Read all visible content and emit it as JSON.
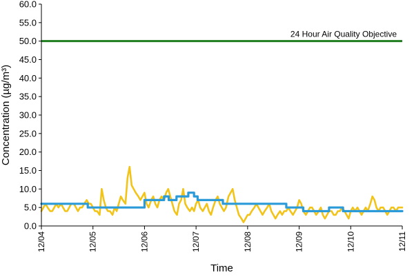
{
  "chart_data": {
    "type": "line",
    "title": "",
    "xlabel": "Time",
    "ylabel": "Concentration (µg/m³)",
    "ylim": [
      0,
      60
    ],
    "y_ticks": [
      "0.0",
      "5.0",
      "10.0",
      "15.0",
      "20.0",
      "25.0",
      "30.0",
      "35.0",
      "40.0",
      "45.0",
      "50.0",
      "55.0",
      "60.0"
    ],
    "x_categories": [
      "12/04",
      "12/05",
      "12/06",
      "12/07",
      "12/08",
      "12/09",
      "12/10",
      "12/11"
    ],
    "xlim": [
      0,
      7
    ],
    "grid": false,
    "legend": "none",
    "objective": {
      "label": "24 Hour Air Quality Objective",
      "value": 50,
      "color": "#1e7d1e"
    },
    "series": [
      {
        "color": "#f2c318",
        "x": [
          0,
          0.04,
          0.08,
          0.12,
          0.17,
          0.21,
          0.25,
          0.29,
          0.33,
          0.38,
          0.42,
          0.46,
          0.5,
          0.54,
          0.58,
          0.63,
          0.67,
          0.71,
          0.75,
          0.79,
          0.83,
          0.88,
          0.92,
          0.96,
          1,
          1.04,
          1.08,
          1.13,
          1.17,
          1.21,
          1.25,
          1.29,
          1.33,
          1.38,
          1.42,
          1.46,
          1.5,
          1.54,
          1.58,
          1.63,
          1.67,
          1.71,
          1.75,
          1.79,
          1.83,
          1.88,
          1.92,
          1.96,
          2,
          2.04,
          2.08,
          2.13,
          2.17,
          2.21,
          2.25,
          2.29,
          2.33,
          2.38,
          2.42,
          2.46,
          2.5,
          2.54,
          2.58,
          2.63,
          2.67,
          2.71,
          2.75,
          2.79,
          2.83,
          2.88,
          2.92,
          2.96,
          3,
          3.04,
          3.08,
          3.13,
          3.17,
          3.21,
          3.25,
          3.29,
          3.33,
          3.38,
          3.42,
          3.46,
          3.5,
          3.54,
          3.58,
          3.63,
          3.67,
          3.71,
          3.75,
          3.79,
          3.83,
          3.88,
          3.92,
          3.96,
          4,
          4.04,
          4.08,
          4.13,
          4.17,
          4.21,
          4.25,
          4.29,
          4.33,
          4.38,
          4.42,
          4.46,
          4.5,
          4.54,
          4.58,
          4.63,
          4.67,
          4.71,
          4.75,
          4.79,
          4.83,
          4.88,
          4.92,
          4.96,
          5,
          5.04,
          5.08,
          5.13,
          5.17,
          5.21,
          5.25,
          5.29,
          5.33,
          5.38,
          5.42,
          5.46,
          5.5,
          5.54,
          5.58,
          5.63,
          5.67,
          5.71,
          5.75,
          5.79,
          5.83,
          5.88,
          5.92,
          5.96,
          6,
          6.04,
          6.08,
          6.13,
          6.17,
          6.21,
          6.25,
          6.29,
          6.33,
          6.38,
          6.42,
          6.46,
          6.5,
          6.54,
          6.58,
          6.63,
          6.67,
          6.71,
          6.75,
          6.79,
          6.83,
          6.88,
          6.92,
          6.96,
          7
        ],
        "values": [
          4,
          5,
          6,
          5,
          4,
          4,
          5,
          6,
          5,
          6,
          5,
          4,
          4,
          5,
          6,
          6,
          5,
          4,
          5,
          5,
          6,
          7,
          6,
          6,
          5,
          4,
          4,
          3,
          10,
          7,
          5,
          4,
          4,
          3,
          5,
          4,
          6,
          8,
          7,
          6,
          13,
          16,
          11,
          10,
          9,
          8,
          7,
          8,
          9,
          6,
          5,
          7,
          8,
          6,
          5,
          7,
          8,
          7,
          9,
          10,
          8,
          6,
          4,
          3,
          6,
          7,
          10,
          6,
          5,
          4,
          5,
          4,
          6,
          7,
          5,
          4,
          5,
          6,
          4,
          3,
          5,
          7,
          8,
          6,
          5,
          4,
          5,
          8,
          9,
          10,
          7,
          5,
          3,
          2,
          1,
          2,
          3,
          3,
          4,
          5,
          6,
          5,
          4,
          3,
          4,
          5,
          6,
          4,
          3,
          2,
          3,
          4,
          3,
          4,
          4,
          5,
          4,
          3,
          4,
          5,
          7,
          6,
          4,
          3,
          4,
          5,
          5,
          4,
          3,
          4,
          5,
          3,
          2,
          3,
          4,
          4,
          3,
          3,
          4,
          4,
          5,
          4,
          3,
          2,
          4,
          5,
          4,
          5,
          4,
          3,
          4,
          5,
          4,
          6,
          8,
          7,
          5,
          4,
          5,
          5,
          4,
          3,
          4,
          5,
          5,
          4,
          5,
          5,
          5
        ]
      },
      {
        "color": "#2a9ad8",
        "x": [
          0,
          0.9,
          0.9,
          2.0,
          2.0,
          2.38,
          2.38,
          2.47,
          2.47,
          2.62,
          2.62,
          2.85,
          2.85,
          2.96,
          2.96,
          3.03,
          3.03,
          3.52,
          3.52,
          4.75,
          4.75,
          5.08,
          5.08,
          5.58,
          5.58,
          5.85,
          5.85,
          7.0
        ],
        "values": [
          6,
          6,
          5,
          5,
          7,
          7,
          8,
          8,
          7,
          7,
          8,
          8,
          9,
          9,
          8,
          8,
          7,
          7,
          6,
          6,
          5,
          5,
          4,
          4,
          5,
          5,
          4,
          4
        ]
      }
    ]
  }
}
